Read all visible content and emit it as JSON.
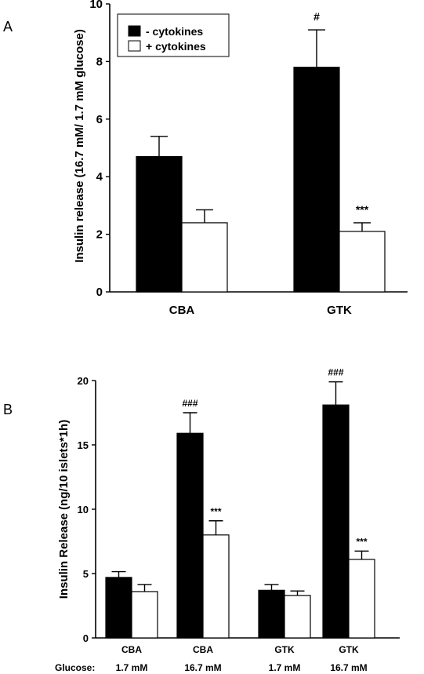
{
  "colors": {
    "minus": "#000000",
    "plus": "#ffffff",
    "stroke": "#000000"
  },
  "chart_data": [
    {
      "panel_label": "A",
      "type": "bar",
      "ylabel": "Insulin release (16.7 mM/ 1.7 mM glucose)",
      "ylim": [
        0,
        10
      ],
      "yticks": [
        "0",
        "2",
        "4",
        "6",
        "8",
        "10"
      ],
      "categories": [
        "CBA",
        "GTK"
      ],
      "legend_placement": "top-left",
      "series": [
        {
          "name": "- cytokines",
          "values": [
            4.7,
            7.8
          ],
          "errors": [
            0.7,
            1.3
          ],
          "annotations": [
            "",
            "#"
          ]
        },
        {
          "name": "+ cytokines",
          "values": [
            2.4,
            2.1
          ],
          "errors": [
            0.45,
            0.3
          ],
          "annotations": [
            "",
            "***"
          ]
        }
      ]
    },
    {
      "panel_label": "B",
      "type": "bar",
      "ylabel": "Insulin Release (ng/10 islets*1h)",
      "ylim": [
        0,
        20
      ],
      "yticks": [
        "0",
        "5",
        "10",
        "15",
        "20"
      ],
      "categories": [
        "CBA",
        "CBA",
        "GTK",
        "GTK"
      ],
      "glucose_label": "Glucose:",
      "glucose": [
        "1.7 mM",
        "16.7 mM",
        "1.7 mM",
        "16.7 mM"
      ],
      "series": [
        {
          "name": "- cytokines",
          "values": [
            4.7,
            15.9,
            3.7,
            18.1
          ],
          "errors": [
            0.45,
            1.6,
            0.45,
            1.8
          ],
          "annotations": [
            "",
            "###",
            "",
            "###"
          ]
        },
        {
          "name": "+ cytokines",
          "values": [
            3.6,
            8.0,
            3.3,
            6.1
          ],
          "errors": [
            0.55,
            1.1,
            0.35,
            0.65
          ],
          "annotations": [
            "",
            "***",
            "",
            "***"
          ]
        }
      ]
    }
  ]
}
